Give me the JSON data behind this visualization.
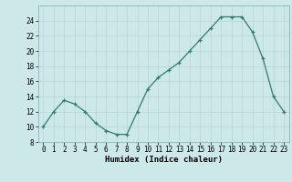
{
  "x": [
    0,
    1,
    2,
    3,
    4,
    5,
    6,
    7,
    8,
    9,
    10,
    11,
    12,
    13,
    14,
    15,
    16,
    17,
    18,
    19,
    20,
    21,
    22,
    23
  ],
  "y": [
    10,
    12,
    13.5,
    13,
    12,
    10.5,
    9.5,
    9,
    9,
    12,
    15,
    16.5,
    17.5,
    18.5,
    20,
    21.5,
    23,
    24.5,
    24.5,
    24.5,
    22.5,
    19,
    14,
    12
  ],
  "line_color": "#2e7d6e",
  "marker": "+",
  "markersize": 3,
  "linewidth": 0.9,
  "bg_color": "#cce8e8",
  "grid_color": "#b8d4d4",
  "xlabel": "Humidex (Indice chaleur)",
  "xlim": [
    -0.5,
    23.5
  ],
  "ylim": [
    8,
    26
  ],
  "yticks": [
    8,
    10,
    12,
    14,
    16,
    18,
    20,
    22,
    24
  ],
  "xticks": [
    0,
    1,
    2,
    3,
    4,
    5,
    6,
    7,
    8,
    9,
    10,
    11,
    12,
    13,
    14,
    15,
    16,
    17,
    18,
    19,
    20,
    21,
    22,
    23
  ],
  "label_fontsize": 6.5,
  "tick_fontsize": 5.5
}
